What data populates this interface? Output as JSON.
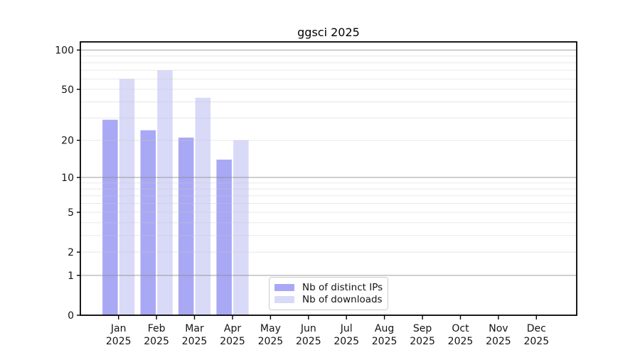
{
  "chart_data": {
    "type": "bar",
    "title": "ggsci 2025",
    "categories": [
      "Jan",
      "Feb",
      "Mar",
      "Apr",
      "May",
      "Jun",
      "Jul",
      "Aug",
      "Sep",
      "Oct",
      "Nov",
      "Dec"
    ],
    "category_year": "2025",
    "series": [
      {
        "name": "Nb of distinct IPs",
        "color": "#a8a8f4",
        "values": [
          29,
          24,
          21,
          14,
          0,
          0,
          0,
          0,
          0,
          0,
          0,
          0
        ]
      },
      {
        "name": "Nb of downloads",
        "color": "#d9d9f8",
        "values": [
          60,
          70,
          43,
          20,
          0,
          0,
          0,
          0,
          0,
          0,
          0,
          0
        ]
      }
    ],
    "y_scale": "log1p",
    "y_ticks": [
      0,
      1,
      2,
      5,
      10,
      20,
      50,
      100
    ],
    "y_major_grid": [
      1,
      10,
      100
    ],
    "y_minor_grid": [
      2,
      3,
      4,
      5,
      6,
      7,
      8,
      9,
      20,
      30,
      40,
      50,
      60,
      70,
      80,
      90
    ],
    "ylim": [
      0,
      115
    ],
    "grid": true,
    "legend_position": "lower center",
    "xlabel": "",
    "ylabel": "",
    "background_color": "#ffffff",
    "axis_color": "#000000",
    "text_color": "#141414",
    "grid_major_color": "#8a8a8a",
    "grid_minor_color": "#c8c8c8"
  }
}
